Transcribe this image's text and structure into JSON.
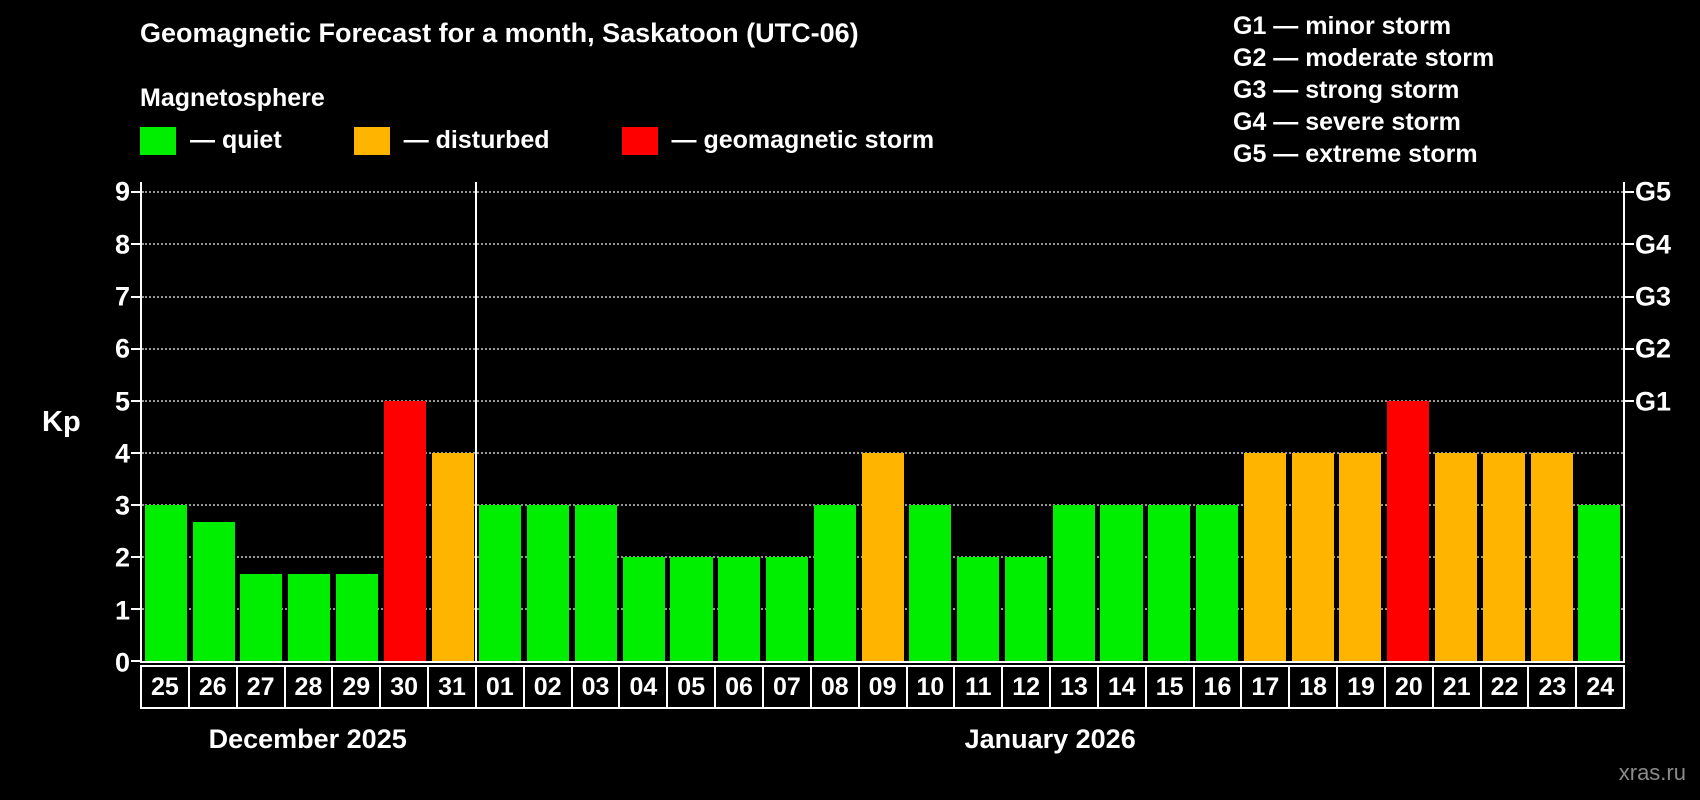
{
  "title": "Geomagnetic Forecast for a month, Saskatoon (UTC-06)",
  "subtitle": "Magnetosphere",
  "ylabel": "Kp",
  "watermark": "xras.ru",
  "legend": {
    "items": [
      {
        "key": "quiet",
        "label": "— quiet"
      },
      {
        "key": "disturbed",
        "label": "— disturbed"
      },
      {
        "key": "storm",
        "label": "— geomagnetic storm"
      }
    ]
  },
  "storm_scale": [
    "G1 — minor storm",
    "G2 — moderate storm",
    "G3 — strong storm",
    "G4 — severe storm",
    "G5 — extreme storm"
  ],
  "colors": {
    "quiet": "#00ee00",
    "disturbed": "#ffb400",
    "storm": "#ff0000",
    "axis": "#ffffff",
    "grid": "#969696",
    "background": "#000000",
    "watermark": "#8a8a8a"
  },
  "chart_data": {
    "type": "bar",
    "title": "Geomagnetic Forecast for a month, Saskatoon (UTC-06)",
    "xlabel": "",
    "ylabel": "Kp",
    "ylim": [
      0,
      9.2
    ],
    "grid": true,
    "yticks": [
      0,
      1,
      2,
      3,
      4,
      5,
      6,
      7,
      8,
      9
    ],
    "right_ticks": [
      {
        "label": "G1",
        "value": 5
      },
      {
        "label": "G2",
        "value": 6
      },
      {
        "label": "G3",
        "value": 7
      },
      {
        "label": "G4",
        "value": 8
      },
      {
        "label": "G5",
        "value": 9
      }
    ],
    "months": [
      {
        "label": "December 2025",
        "days": [
          {
            "day": "25",
            "kp": 3,
            "status": "quiet"
          },
          {
            "day": "26",
            "kp": 2.67,
            "status": "quiet"
          },
          {
            "day": "27",
            "kp": 1.67,
            "status": "quiet"
          },
          {
            "day": "28",
            "kp": 1.67,
            "status": "quiet"
          },
          {
            "day": "29",
            "kp": 1.67,
            "status": "quiet"
          },
          {
            "day": "30",
            "kp": 5,
            "status": "storm"
          },
          {
            "day": "31",
            "kp": 4,
            "status": "disturbed"
          }
        ]
      },
      {
        "label": "January 2026",
        "days": [
          {
            "day": "01",
            "kp": 3,
            "status": "quiet"
          },
          {
            "day": "02",
            "kp": 3,
            "status": "quiet"
          },
          {
            "day": "03",
            "kp": 3,
            "status": "quiet"
          },
          {
            "day": "04",
            "kp": 2,
            "status": "quiet"
          },
          {
            "day": "05",
            "kp": 2,
            "status": "quiet"
          },
          {
            "day": "06",
            "kp": 2,
            "status": "quiet"
          },
          {
            "day": "07",
            "kp": 2,
            "status": "quiet"
          },
          {
            "day": "08",
            "kp": 3,
            "status": "quiet"
          },
          {
            "day": "09",
            "kp": 4,
            "status": "disturbed"
          },
          {
            "day": "10",
            "kp": 3,
            "status": "quiet"
          },
          {
            "day": "11",
            "kp": 2,
            "status": "quiet"
          },
          {
            "day": "12",
            "kp": 2,
            "status": "quiet"
          },
          {
            "day": "13",
            "kp": 3,
            "status": "quiet"
          },
          {
            "day": "14",
            "kp": 3,
            "status": "quiet"
          },
          {
            "day": "15",
            "kp": 3,
            "status": "quiet"
          },
          {
            "day": "16",
            "kp": 3,
            "status": "quiet"
          },
          {
            "day": "17",
            "kp": 4,
            "status": "disturbed"
          },
          {
            "day": "18",
            "kp": 4,
            "status": "disturbed"
          },
          {
            "day": "19",
            "kp": 4,
            "status": "disturbed"
          },
          {
            "day": "20",
            "kp": 5,
            "status": "storm"
          },
          {
            "day": "21",
            "kp": 4,
            "status": "disturbed"
          },
          {
            "day": "22",
            "kp": 4,
            "status": "disturbed"
          },
          {
            "day": "23",
            "kp": 4,
            "status": "disturbed"
          },
          {
            "day": "24",
            "kp": 3,
            "status": "quiet"
          }
        ]
      }
    ]
  }
}
